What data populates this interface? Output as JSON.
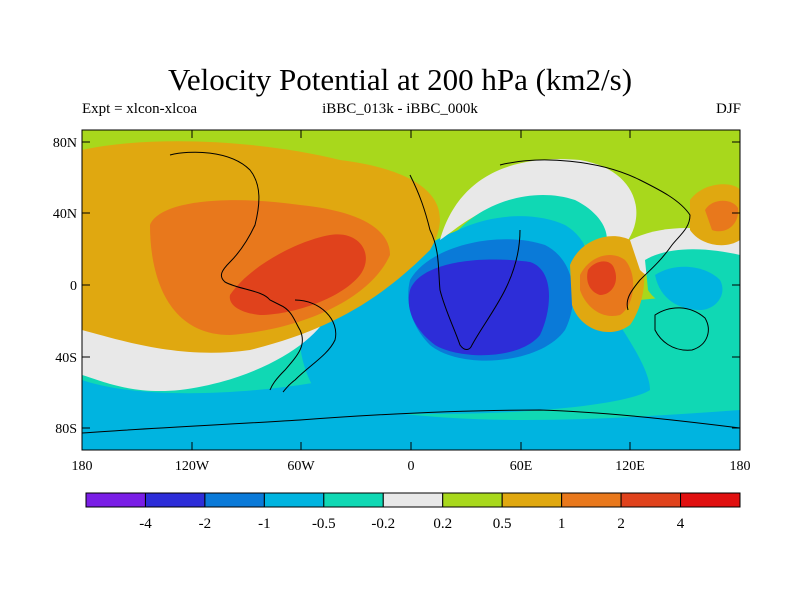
{
  "title": "Velocity Potential at 200 hPa (km2/s)",
  "left_label": "Expt = xlcon-xlcoa",
  "center_label": "iBBC_013k - iBBC_000k",
  "right_label": "DJF",
  "axes": {
    "y_ticks": [
      "80N",
      "40N",
      "0",
      "40S",
      "80S"
    ],
    "x_ticks": [
      "180",
      "120W",
      "60W",
      "0",
      "60E",
      "120E",
      "180"
    ]
  },
  "colorbar": {
    "colors": [
      "#7a1ee6",
      "#2d2dd8",
      "#0a7ad8",
      "#00b4e0",
      "#10d8b4",
      "#e8e8e8",
      "#a8d81c",
      "#e0a810",
      "#e8781c",
      "#e0421c",
      "#e01010"
    ],
    "labels": [
      "-4",
      "-2",
      "-1",
      "-0.5",
      "-0.2",
      "0.2",
      "0.5",
      "1",
      "2",
      "4"
    ]
  },
  "palette": {
    "pos_weak": "#a8d81c",
    "pos_mid": "#e0a810",
    "pos_strong": "#e8781c",
    "pos_max": "#e0421c",
    "neutral": "#e8e8e8",
    "neg_weak": "#10d8b4",
    "neg_mid": "#00b4e0",
    "neg_strong": "#0a7ad8",
    "neg_max": "#2d2dd8"
  }
}
